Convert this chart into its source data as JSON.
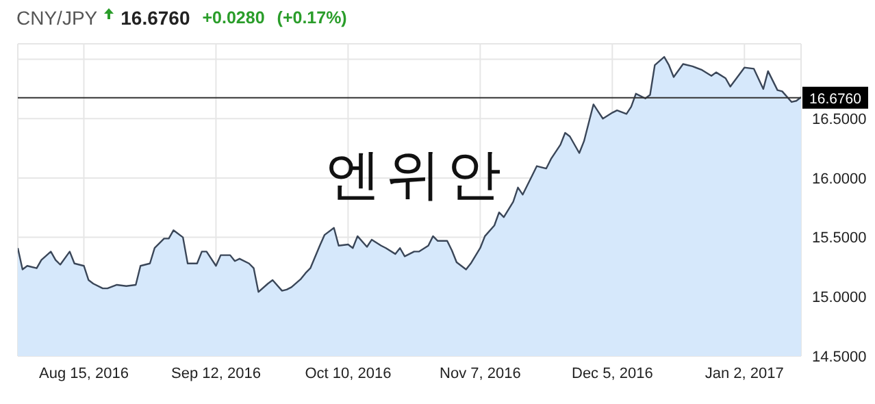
{
  "chart_data": {
    "type": "area",
    "title": "CNY/JPY",
    "annotations": [
      "16.6760",
      "+0.0280",
      "(+0.17%)",
      "엔위안"
    ],
    "x": [
      "2016-08-01",
      "2016-08-02",
      "2016-08-03",
      "2016-08-05",
      "2016-08-06",
      "2016-08-08",
      "2016-08-09",
      "2016-08-10",
      "2016-08-12",
      "2016-08-13",
      "2016-08-15",
      "2016-08-16",
      "2016-08-17",
      "2016-08-19",
      "2016-08-20",
      "2016-08-22",
      "2016-08-24",
      "2016-08-26",
      "2016-08-27",
      "2016-08-29",
      "2016-08-30",
      "2016-09-01",
      "2016-09-02",
      "2016-09-03",
      "2016-09-05",
      "2016-09-06",
      "2016-09-08",
      "2016-09-09",
      "2016-09-10",
      "2016-09-12",
      "2016-09-13",
      "2016-09-15",
      "2016-09-16",
      "2016-09-17",
      "2016-09-19",
      "2016-09-20",
      "2016-09-21",
      "2016-09-23",
      "2016-09-24",
      "2016-09-26",
      "2016-09-27",
      "2016-09-28",
      "2016-09-30",
      "2016-10-01",
      "2016-10-02",
      "2016-10-04",
      "2016-10-05",
      "2016-10-07",
      "2016-10-08",
      "2016-10-10",
      "2016-10-11",
      "2016-10-12",
      "2016-10-14",
      "2016-10-15",
      "2016-10-17",
      "2016-10-18",
      "2016-10-20",
      "2016-10-21",
      "2016-10-22",
      "2016-10-24",
      "2016-10-25",
      "2016-10-27",
      "2016-10-28",
      "2016-10-29",
      "2016-10-31",
      "2016-11-01",
      "2016-11-02",
      "2016-11-04",
      "2016-11-05",
      "2016-11-07",
      "2016-11-08",
      "2016-11-10",
      "2016-11-11",
      "2016-11-12",
      "2016-11-14",
      "2016-11-15",
      "2016-11-16",
      "2016-11-18",
      "2016-11-19",
      "2016-11-21",
      "2016-11-22",
      "2016-11-24",
      "2016-11-25",
      "2016-11-26",
      "2016-11-28",
      "2016-11-29",
      "2016-12-01",
      "2016-12-02",
      "2016-12-03",
      "2016-12-05",
      "2016-12-06",
      "2016-12-08",
      "2016-12-09",
      "2016-12-10",
      "2016-12-12",
      "2016-12-13",
      "2016-12-14",
      "2016-12-16",
      "2016-12-17",
      "2016-12-18",
      "2016-12-20",
      "2016-12-22",
      "2016-12-24",
      "2016-12-26",
      "2016-12-27",
      "2016-12-29",
      "2016-12-30",
      "2017-01-02",
      "2017-01-04",
      "2017-01-06",
      "2017-01-07",
      "2017-01-09",
      "2017-01-10",
      "2017-01-12",
      "2017-01-13",
      "2017-01-14"
    ],
    "series": [
      {
        "color": "#3a4658",
        "values": [
          15.41,
          15.23,
          15.26,
          15.24,
          15.31,
          15.38,
          15.31,
          15.27,
          15.38,
          15.28,
          15.26,
          15.14,
          15.11,
          15.07,
          15.07,
          15.1,
          15.09,
          15.1,
          15.26,
          15.28,
          15.41,
          15.49,
          15.49,
          15.56,
          15.5,
          15.28,
          15.28,
          15.38,
          15.38,
          15.26,
          15.35,
          15.35,
          15.3,
          15.32,
          15.28,
          15.24,
          15.04,
          15.11,
          15.14,
          15.05,
          15.06,
          15.08,
          15.15,
          15.2,
          15.24,
          15.43,
          15.52,
          15.58,
          15.43,
          15.44,
          15.41,
          15.51,
          15.42,
          15.48,
          15.43,
          15.41,
          15.36,
          15.41,
          15.34,
          15.38,
          15.38,
          15.43,
          15.51,
          15.47,
          15.47,
          15.39,
          15.29,
          15.23,
          15.28,
          15.41,
          15.51,
          15.6,
          15.71,
          15.67,
          15.8,
          15.92,
          15.86,
          16.02,
          16.1,
          16.08,
          16.16,
          16.28,
          16.38,
          16.35,
          16.21,
          16.31,
          16.62,
          16.56,
          16.5,
          16.55,
          16.57,
          16.54,
          16.6,
          16.71,
          16.67,
          16.7,
          16.95,
          17.02,
          16.95,
          16.85,
          16.96,
          16.94,
          16.91,
          16.86,
          16.89,
          16.84,
          16.77,
          16.93,
          16.92,
          16.75,
          16.9,
          16.74,
          16.73,
          16.64,
          16.65,
          16.68
        ]
      }
    ],
    "xlim": [
      "2016-08-01",
      "2017-01-14"
    ],
    "xticks": [
      {
        "value": "2016-08-15",
        "label": "Aug 15, 2016"
      },
      {
        "value": "2016-09-12",
        "label": "Sep 12, 2016"
      },
      {
        "value": "2016-10-10",
        "label": "Oct 10, 2016"
      },
      {
        "value": "2016-11-07",
        "label": "Nov 7, 2016"
      },
      {
        "value": "2016-12-05",
        "label": "Dec 5, 2016"
      },
      {
        "value": "2017-01-02",
        "label": "Jan 2, 2017"
      }
    ],
    "ylim": [
      14.5,
      17.13
    ],
    "yticks": [
      {
        "value": 14.5,
        "label": "14.5000"
      },
      {
        "value": 15,
        "label": "15.0000"
      },
      {
        "value": 15.5,
        "label": "15.5000"
      },
      {
        "value": 16,
        "label": "16.0000"
      },
      {
        "value": 16.5,
        "label": "16.5000"
      },
      {
        "value": 17,
        "label": null
      }
    ],
    "ref_lines": [
      {
        "axis": "y",
        "value": 16.676,
        "label": "16.6760",
        "color": "#333333"
      }
    ],
    "grid": true,
    "legend": false
  }
}
